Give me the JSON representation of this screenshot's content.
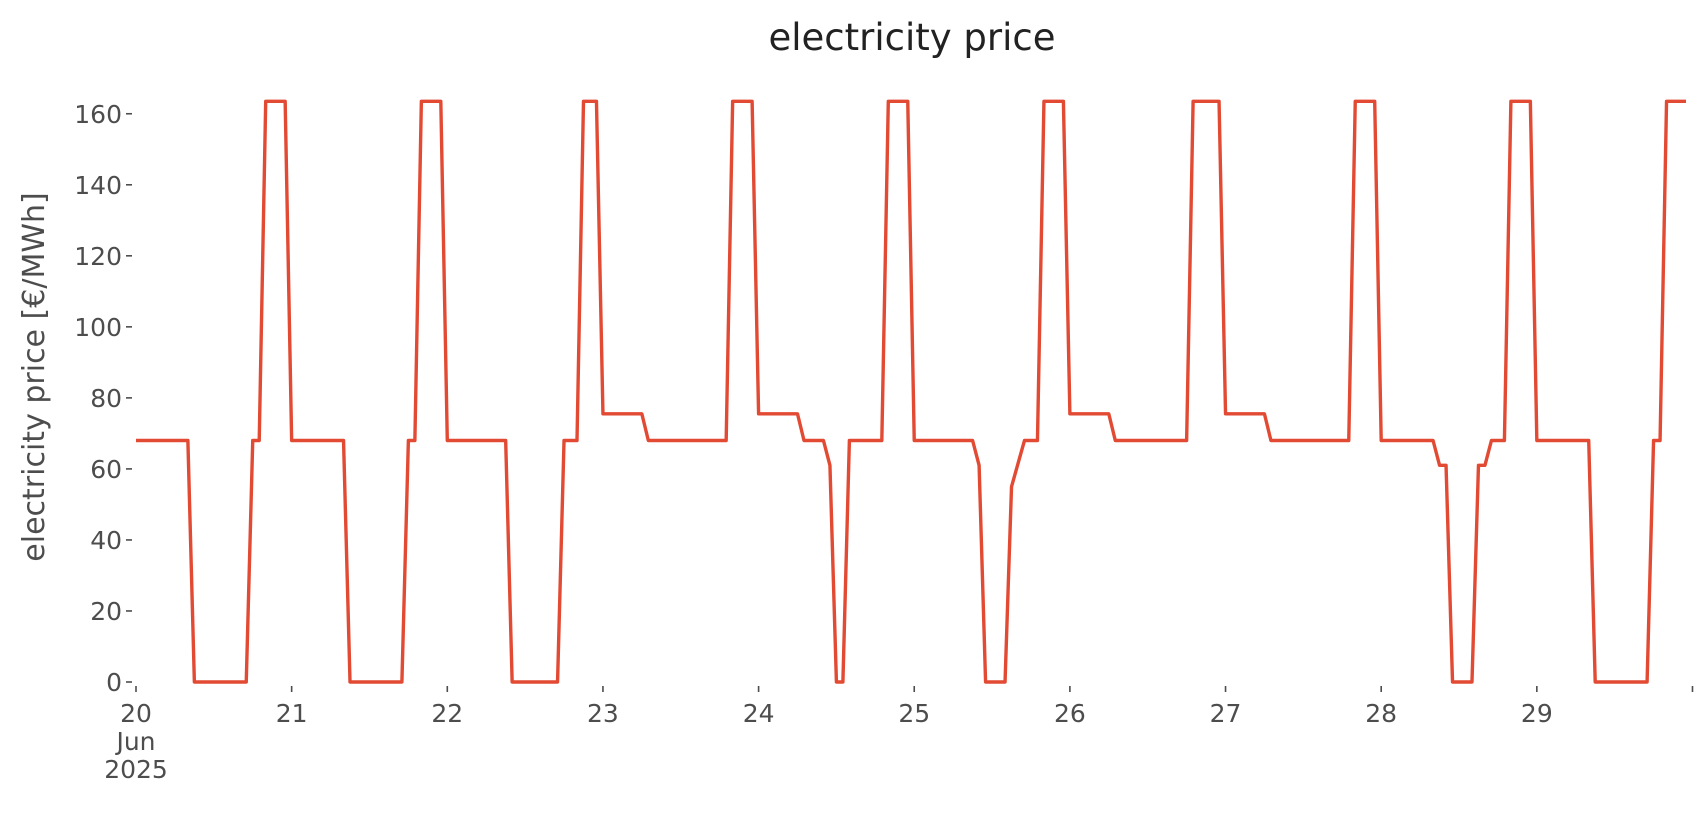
{
  "chart_data": {
    "type": "line",
    "title": "electricity price",
    "ylabel": "electricity price [€/MWh]",
    "xlabel": "",
    "ylim": [
      0,
      165
    ],
    "xlim": [
      "2025-06-20 00:00",
      "2025-06-29 23:00"
    ],
    "grid": false,
    "legend": "none",
    "y_ticks": [
      0,
      20,
      40,
      60,
      80,
      100,
      120,
      140,
      160
    ],
    "x_ticks": [
      {
        "date": "2025-06-20 00:00",
        "label": "20",
        "sublabel": "Jun",
        "sublabel2": "2025"
      },
      {
        "date": "2025-06-21 00:00",
        "label": "21"
      },
      {
        "date": "2025-06-22 00:00",
        "label": "22"
      },
      {
        "date": "2025-06-23 00:00",
        "label": "23"
      },
      {
        "date": "2025-06-24 00:00",
        "label": "24"
      },
      {
        "date": "2025-06-25 00:00",
        "label": "25"
      },
      {
        "date": "2025-06-26 00:00",
        "label": "26"
      },
      {
        "date": "2025-06-27 00:00",
        "label": "27"
      },
      {
        "date": "2025-06-28 00:00",
        "label": "28"
      },
      {
        "date": "2025-06-29 00:00",
        "label": "29"
      },
      {
        "date": "2025-06-30 00:00",
        "label": ""
      }
    ],
    "series": [
      {
        "color": "#e24a33",
        "points": [
          [
            "2025-06-20 00:00",
            68
          ],
          [
            "2025-06-20 08:00",
            68
          ],
          [
            "2025-06-20 09:00",
            0
          ],
          [
            "2025-06-20 17:00",
            0
          ],
          [
            "2025-06-20 18:00",
            68
          ],
          [
            "2025-06-20 19:00",
            68
          ],
          [
            "2025-06-20 20:00",
            163.5
          ],
          [
            "2025-06-20 23:00",
            163.5
          ],
          [
            "2025-06-21 00:00",
            68
          ],
          [
            "2025-06-21 08:00",
            68
          ],
          [
            "2025-06-21 09:00",
            0
          ],
          [
            "2025-06-21 17:00",
            0
          ],
          [
            "2025-06-21 18:00",
            68
          ],
          [
            "2025-06-21 19:00",
            68
          ],
          [
            "2025-06-21 20:00",
            163.5
          ],
          [
            "2025-06-21 23:00",
            163.5
          ],
          [
            "2025-06-22 00:00",
            68
          ],
          [
            "2025-06-22 09:00",
            68
          ],
          [
            "2025-06-22 10:00",
            0
          ],
          [
            "2025-06-22 17:00",
            0
          ],
          [
            "2025-06-22 18:00",
            68
          ],
          [
            "2025-06-22 20:00",
            68
          ],
          [
            "2025-06-22 21:00",
            163.5
          ],
          [
            "2025-06-22 23:00",
            163.5
          ],
          [
            "2025-06-23 00:00",
            75.5
          ],
          [
            "2025-06-23 06:00",
            75.5
          ],
          [
            "2025-06-23 07:00",
            68
          ],
          [
            "2025-06-23 19:00",
            68
          ],
          [
            "2025-06-23 20:00",
            163.5
          ],
          [
            "2025-06-23 23:00",
            163.5
          ],
          [
            "2025-06-24 00:00",
            75.5
          ],
          [
            "2025-06-24 06:00",
            75.5
          ],
          [
            "2025-06-24 07:00",
            68
          ],
          [
            "2025-06-24 10:00",
            68
          ],
          [
            "2025-06-24 11:00",
            61
          ],
          [
            "2025-06-24 12:00",
            0
          ],
          [
            "2025-06-24 13:00",
            0
          ],
          [
            "2025-06-24 14:00",
            68
          ],
          [
            "2025-06-24 19:00",
            68
          ],
          [
            "2025-06-24 20:00",
            163.5
          ],
          [
            "2025-06-24 23:00",
            163.5
          ],
          [
            "2025-06-25 00:00",
            68
          ],
          [
            "2025-06-25 09:00",
            68
          ],
          [
            "2025-06-25 10:00",
            61
          ],
          [
            "2025-06-25 11:00",
            0
          ],
          [
            "2025-06-25 14:00",
            0
          ],
          [
            "2025-06-25 15:00",
            55
          ],
          [
            "2025-06-25 17:00",
            68
          ],
          [
            "2025-06-25 19:00",
            68
          ],
          [
            "2025-06-25 20:00",
            163.5
          ],
          [
            "2025-06-25 23:00",
            163.5
          ],
          [
            "2025-06-26 00:00",
            75.5
          ],
          [
            "2025-06-26 06:00",
            75.5
          ],
          [
            "2025-06-26 07:00",
            68
          ],
          [
            "2025-06-26 18:00",
            68
          ],
          [
            "2025-06-26 19:00",
            163.5
          ],
          [
            "2025-06-26 23:00",
            163.5
          ],
          [
            "2025-06-27 00:00",
            75.5
          ],
          [
            "2025-06-27 06:00",
            75.5
          ],
          [
            "2025-06-27 07:00",
            68
          ],
          [
            "2025-06-27 19:00",
            68
          ],
          [
            "2025-06-27 20:00",
            163.5
          ],
          [
            "2025-06-27 23:00",
            163.5
          ],
          [
            "2025-06-28 00:00",
            68
          ],
          [
            "2025-06-28 08:00",
            68
          ],
          [
            "2025-06-28 09:00",
            61
          ],
          [
            "2025-06-28 10:00",
            61
          ],
          [
            "2025-06-28 11:00",
            0
          ],
          [
            "2025-06-28 14:00",
            0
          ],
          [
            "2025-06-28 15:00",
            61
          ],
          [
            "2025-06-28 16:00",
            61
          ],
          [
            "2025-06-28 17:00",
            68
          ],
          [
            "2025-06-28 19:00",
            68
          ],
          [
            "2025-06-28 20:00",
            163.5
          ],
          [
            "2025-06-28 23:00",
            163.5
          ],
          [
            "2025-06-29 00:00",
            68
          ],
          [
            "2025-06-29 08:00",
            68
          ],
          [
            "2025-06-29 09:00",
            0
          ],
          [
            "2025-06-29 17:00",
            0
          ],
          [
            "2025-06-29 18:00",
            68
          ],
          [
            "2025-06-29 19:00",
            68
          ],
          [
            "2025-06-29 20:00",
            163.5
          ],
          [
            "2025-06-29 23:00",
            163.5
          ]
        ]
      }
    ]
  }
}
